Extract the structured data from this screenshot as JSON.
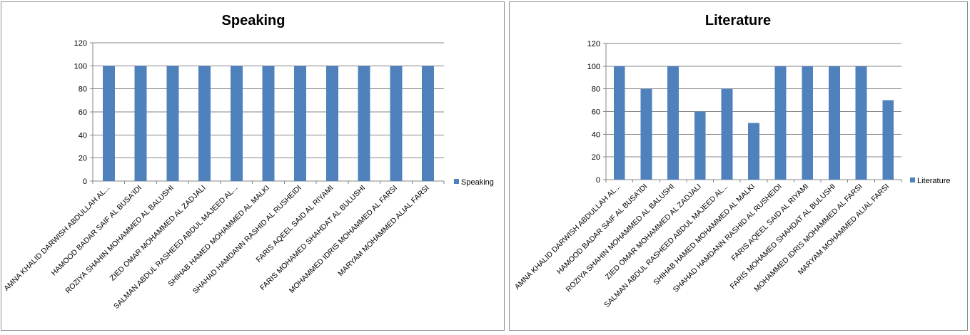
{
  "colors": {
    "series": "#4F81BD",
    "gridline": "#858585",
    "axis": "#858585"
  },
  "chart_data": [
    {
      "type": "bar",
      "title": "Speaking",
      "xlabel": "",
      "ylabel": "",
      "ylim": [
        0,
        120
      ],
      "ytick_step": 20,
      "grid": true,
      "legend_position": "right",
      "categories": [
        "AMNA KHALID DARWISH ABDULLAH AL...",
        "HAMOOD BADAR SAIF AL BUSA'IDI",
        "ROZIYA SHAHIN MOHAMMED AL BALUSHI",
        "ZIED OMAR MOHAMMED AL ZADJALI",
        "SALMAN ABDUL RASHEED ABDUL MAJEED AL...",
        "SHIHAB HAMED MOHAMMED AL MALKI",
        "SHAHAD HAMDANN RASHID AL RUSHEIDI",
        "FARIS AQEEL SAID AL RIYAMI",
        "FARIS MOHAMED SHAHDAT AL BULUSHI",
        "MOHAMMED IDRIS MOHAMMED AL FARSI",
        "MARYAM MOHAMMED ALIAL FARSI"
      ],
      "series": [
        {
          "name": "Speaking",
          "values": [
            100,
            100,
            100,
            100,
            100,
            100,
            100,
            100,
            100,
            100,
            100
          ]
        }
      ]
    },
    {
      "type": "bar",
      "title": "Literature",
      "xlabel": "",
      "ylabel": "",
      "ylim": [
        0,
        120
      ],
      "ytick_step": 20,
      "grid": true,
      "legend_position": "right",
      "categories": [
        "AMNA KHALID DARWISH ABDULLAH AL...",
        "HAMOOD BADAR SAIF AL BUSA'IDI",
        "ROZIYA SHAHIN MOHAMMED AL BALUSHI",
        "ZIED OMAR MOHAMMED AL ZADJALI",
        "SALMAN ABDUL RASHEED ABDUL MAJEED AL...",
        "SHIHAB HAMED MOHAMMED AL MALKI",
        "SHAHAD HAMDANN RASHID AL RUSHEIDI",
        "FARIS AQEEL SAID AL RIYAMI",
        "FARIS MOHAMED SHAHDAT AL BULUSHI",
        "MOHAMMED IDRIS MOHAMMED AL FARSI",
        "MARYAM MOHAMMED ALIAL FARSI"
      ],
      "series": [
        {
          "name": "Literature",
          "values": [
            100,
            80,
            100,
            60,
            80,
            50,
            100,
            100,
            100,
            100,
            70
          ]
        }
      ]
    }
  ]
}
